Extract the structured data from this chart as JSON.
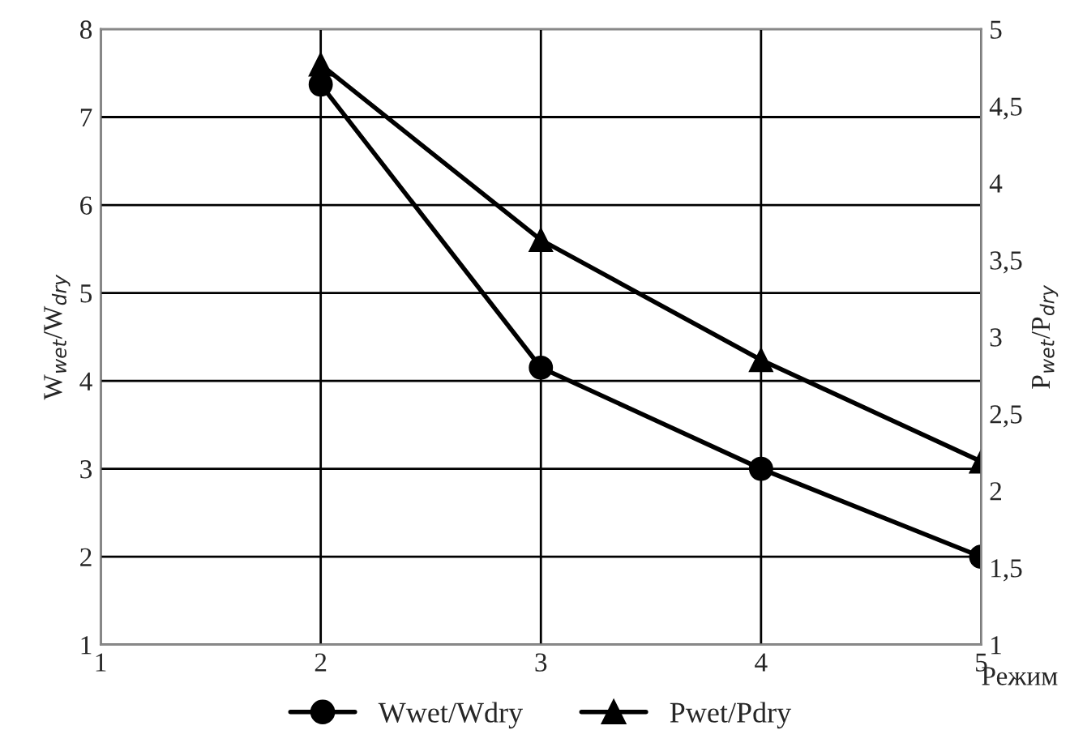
{
  "chart_data": {
    "type": "line",
    "x": [
      2,
      3,
      4,
      5
    ],
    "xlabel": "Режим",
    "ylabel": "W$_{wet}$/W$_{dry}$",
    "y2label": "P$_{wet}$/P$_{dry}$",
    "series": [
      {
        "name": "Wwet/Wdry",
        "color": "#000000",
        "marker": "circle",
        "values": [
          7.37,
          4.15,
          3.0,
          2.0
        ]
      },
      {
        "name": "Pwet/Pdry",
        "color": "#000000",
        "marker": "triangle",
        "axis": "y2",
        "values": [
          4.77,
          3.63,
          2.85,
          2.19
        ]
      }
    ],
    "xlim": [
      1,
      5
    ],
    "xticks": [
      1,
      2,
      3,
      4,
      5
    ],
    "ylim": [
      1,
      8
    ],
    "yticks": [
      1,
      2,
      3,
      4,
      5,
      6,
      7,
      8
    ],
    "y2lim": [
      1,
      5
    ],
    "y2ticks": [
      1,
      {
        "value": 1.5,
        "label": "1,5"
      },
      2,
      {
        "value": 2.5,
        "label": "2,5"
      },
      3,
      {
        "value": 3.5,
        "label": "3,5"
      },
      4,
      {
        "value": 4.5,
        "label": "4,5"
      },
      5
    ],
    "grid": true,
    "legend": "bottom",
    "line_style": "solid"
  }
}
